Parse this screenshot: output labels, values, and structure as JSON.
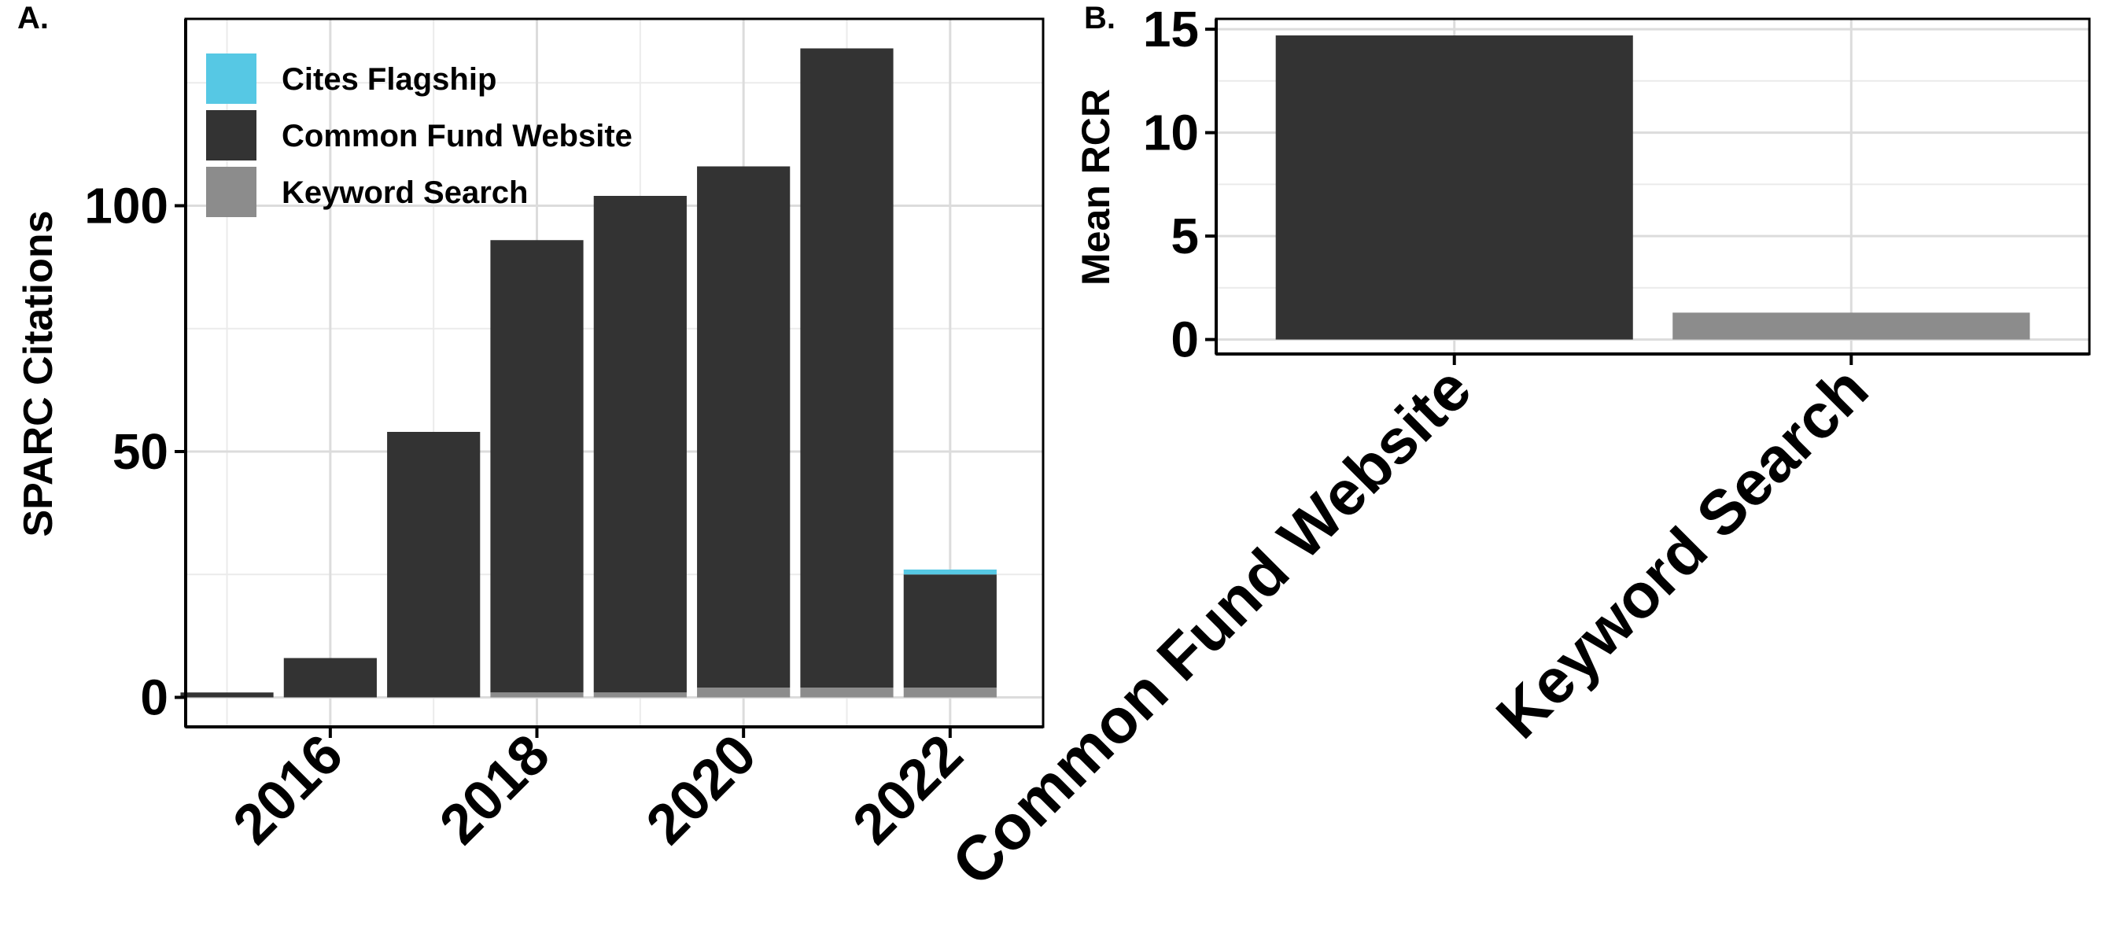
{
  "colors": {
    "cites_flagship": "#56C8E4",
    "common_fund_website": "#333333",
    "keyword_search": "#8C8C8C",
    "grid_major": "#DCDCDC",
    "grid_minor": "#EBEBEB",
    "frame": "#000000"
  },
  "chart_data": [
    {
      "type": "bar",
      "stacked": true,
      "panel_label": "A.",
      "ylabel": "SPARC Citations",
      "xlabel": "",
      "x": [
        2015,
        2016,
        2017,
        2018,
        2019,
        2020,
        2021,
        2022
      ],
      "x_ticks": [
        "2016",
        "2018",
        "2020",
        "2022"
      ],
      "y_ticks": [
        "0",
        "50",
        "100"
      ],
      "xlim": [
        2014.6,
        2022.9
      ],
      "ylim": [
        -6,
        138
      ],
      "grid": true,
      "legend_position": "top-left",
      "series": [
        {
          "name": "Keyword Search",
          "color_key": "keyword_search",
          "values": [
            0,
            0,
            0,
            1,
            1,
            2,
            2,
            2
          ]
        },
        {
          "name": "Common Fund Website",
          "color_key": "common_fund_website",
          "values": [
            1,
            8,
            54,
            92,
            101,
            106,
            130,
            23
          ]
        },
        {
          "name": "Cites Flagship",
          "color_key": "cites_flagship",
          "values": [
            0,
            0,
            0,
            0,
            0,
            0,
            0,
            1
          ]
        }
      ],
      "legend_order": [
        "Cites Flagship",
        "Common Fund Website",
        "Keyword Search"
      ]
    },
    {
      "type": "bar",
      "panel_label": "B.",
      "ylabel": "Mean RCR",
      "xlabel": "",
      "categories": [
        "Common Fund Website",
        "Keyword Search"
      ],
      "values": [
        14.7,
        1.3
      ],
      "color_keys": [
        "common_fund_website",
        "keyword_search"
      ],
      "y_ticks": [
        "0",
        "5",
        "10",
        "15"
      ],
      "ylim": [
        -0.7,
        15.5
      ],
      "grid": true,
      "legend_position": "none"
    }
  ]
}
